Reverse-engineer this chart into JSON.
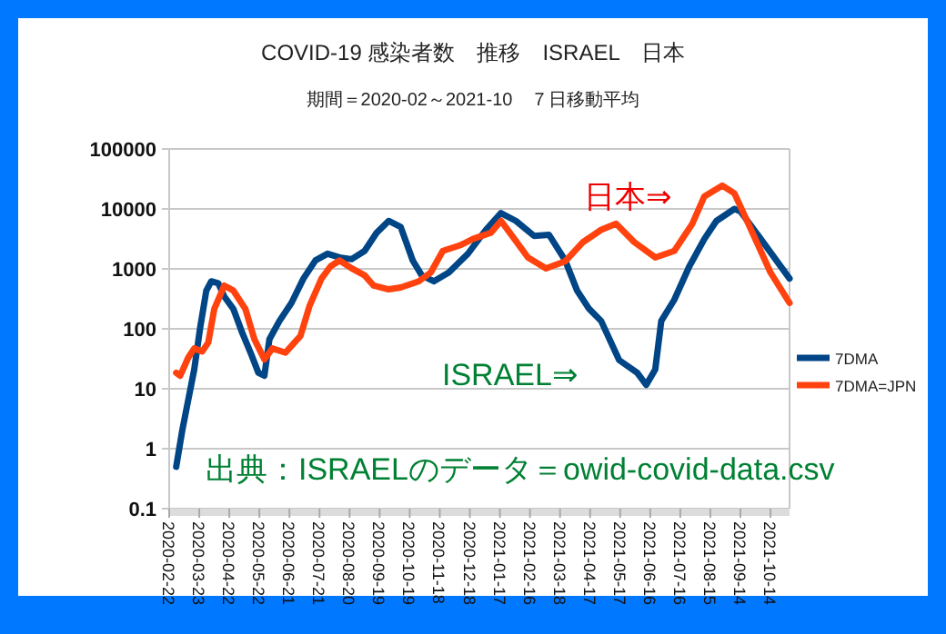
{
  "chart_data": {
    "type": "line",
    "title": "COVID-19 感染者数　推移　ISRAEL　日本",
    "subtitle": "期間＝2020-02～2021-10　７日移動平均",
    "annotations": [
      "日本⇒",
      "ISRAEL⇒",
      "出典：ISRAELのデータ＝owid-covid-data.csv"
    ],
    "log": "y",
    "grid": "y",
    "legend": "right",
    "marker": "none",
    "line_style": "solid",
    "xlim": [
      "2020-02-22",
      "2021-11-02"
    ],
    "xticks": [
      "2020-02-22",
      "2020-03-23",
      "2020-04-22",
      "2020-05-22",
      "2020-06-21",
      "2020-07-21",
      "2020-08-20",
      "2020-09-19",
      "2020-10-19",
      "2020-11-18",
      "2020-12-18",
      "2021-01-17",
      "2021-02-16",
      "2021-03-18",
      "2021-04-17",
      "2021-05-17",
      "2021-06-16",
      "2021-07-16",
      "2021-08-15",
      "2021-09-14",
      "2021-10-14"
    ],
    "ylim": [
      0.1,
      100000
    ],
    "yticks": [
      0.1,
      1,
      10,
      100,
      1000,
      10000,
      100000
    ],
    "series": [
      {
        "name": "7DMA",
        "color": "#004586",
        "x": [
          "2020-02-29",
          "2020-03-06",
          "2020-03-12",
          "2020-03-18",
          "2020-03-24",
          "2020-03-30",
          "2020-04-04",
          "2020-04-11",
          "2020-04-17",
          "2020-04-26",
          "2020-05-05",
          "2020-05-14",
          "2020-05-21",
          "2020-05-27",
          "2020-06-01",
          "2020-06-11",
          "2020-06-23",
          "2020-07-05",
          "2020-07-17",
          "2020-07-29",
          "2020-08-10",
          "2020-08-22",
          "2020-09-04",
          "2020-09-16",
          "2020-09-28",
          "2020-10-10",
          "2020-10-22",
          "2020-10-31",
          "2020-11-12",
          "2020-11-27",
          "2020-12-16",
          "2021-01-03",
          "2021-01-18",
          "2021-02-02",
          "2021-02-20",
          "2021-03-07",
          "2021-03-23",
          "2021-04-04",
          "2021-04-16",
          "2021-04-28",
          "2021-05-16",
          "2021-06-03",
          "2021-06-12",
          "2021-06-21",
          "2021-06-27",
          "2021-07-10",
          "2021-07-25",
          "2021-08-09",
          "2021-08-21",
          "2021-09-08",
          "2021-09-14",
          "2021-10-02",
          "2021-11-02"
        ],
        "values": [
          0.5,
          2,
          6.5,
          21,
          107,
          430,
          620,
          575,
          345,
          215,
          85,
          37,
          18.5,
          16.5,
          67,
          135,
          270,
          690,
          1390,
          1790,
          1550,
          1450,
          1990,
          4000,
          6300,
          5000,
          1380,
          780,
          620,
          870,
          1780,
          4480,
          8500,
          6300,
          3550,
          3700,
          1400,
          435,
          215,
          135,
          30,
          18.5,
          11.6,
          21,
          135,
          305,
          1100,
          3150,
          6300,
          10000,
          9100,
          3550,
          690
        ]
      },
      {
        "name": "7DMA=JPN",
        "color": "#ff420e",
        "x": [
          "2020-02-29",
          "2020-03-04",
          "2020-03-12",
          "2020-03-18",
          "2020-03-26",
          "2020-04-01",
          "2020-04-07",
          "2020-04-17",
          "2020-04-26",
          "2020-05-08",
          "2020-05-17",
          "2020-05-27",
          "2020-06-04",
          "2020-06-17",
          "2020-06-26",
          "2020-07-02",
          "2020-07-11",
          "2020-07-23",
          "2020-08-01",
          "2020-08-10",
          "2020-08-22",
          "2020-09-04",
          "2020-09-13",
          "2020-09-28",
          "2020-10-10",
          "2020-10-28",
          "2020-11-09",
          "2020-11-21",
          "2020-12-09",
          "2020-12-21",
          "2021-01-08",
          "2021-01-18",
          "2021-01-27",
          "2021-02-14",
          "2021-03-04",
          "2021-03-23",
          "2021-04-10",
          "2021-04-28",
          "2021-05-13",
          "2021-05-31",
          "2021-06-21",
          "2021-07-10",
          "2021-07-28",
          "2021-08-09",
          "2021-08-27",
          "2021-09-08",
          "2021-09-26",
          "2021-10-14",
          "2021-11-02"
        ],
        "values": [
          18.5,
          16.5,
          33,
          47,
          42,
          59,
          215,
          525,
          435,
          215,
          67,
          31,
          47,
          40,
          59,
          76,
          240,
          690,
          1100,
          1380,
          1020,
          780,
          525,
          455,
          490,
          620,
          870,
          1990,
          2500,
          3150,
          4000,
          6300,
          4000,
          1550,
          1020,
          1330,
          2800,
          4480,
          5650,
          2800,
          1550,
          1990,
          5650,
          16200,
          24500,
          18200,
          4000,
          870,
          270
        ]
      }
    ]
  }
}
